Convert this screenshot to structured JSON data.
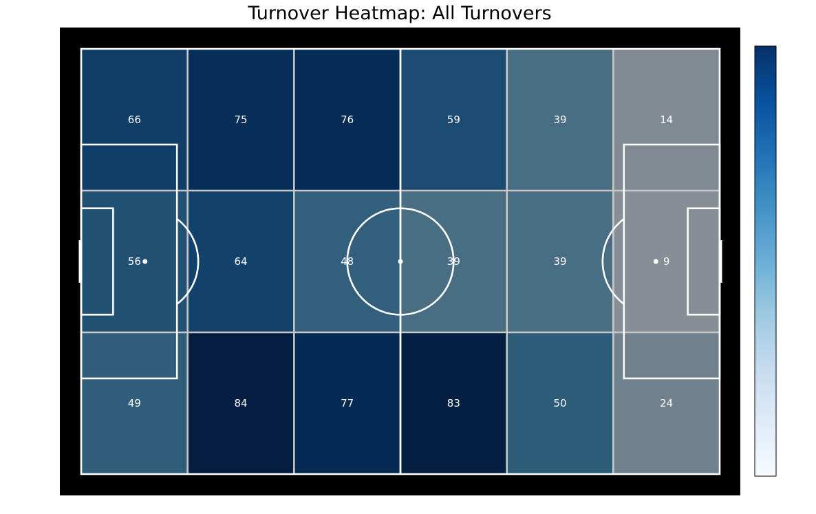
{
  "chart_data": {
    "type": "heatmap",
    "title": "Turnover Heatmap: All Turnovers",
    "rows": 3,
    "cols": 6,
    "values": [
      [
        66,
        75,
        76,
        59,
        39,
        14
      ],
      [
        56,
        64,
        48,
        39,
        39,
        9
      ],
      [
        49,
        84,
        77,
        83,
        50,
        24
      ]
    ],
    "value_range": [
      0,
      84
    ],
    "colormap": "Blues",
    "colorbar": {
      "position": "right",
      "ticks_shown": false
    },
    "pitch": {
      "background": "#000000",
      "line_color": "#ffffff",
      "grid_line_color": "#c8c8c8"
    }
  }
}
